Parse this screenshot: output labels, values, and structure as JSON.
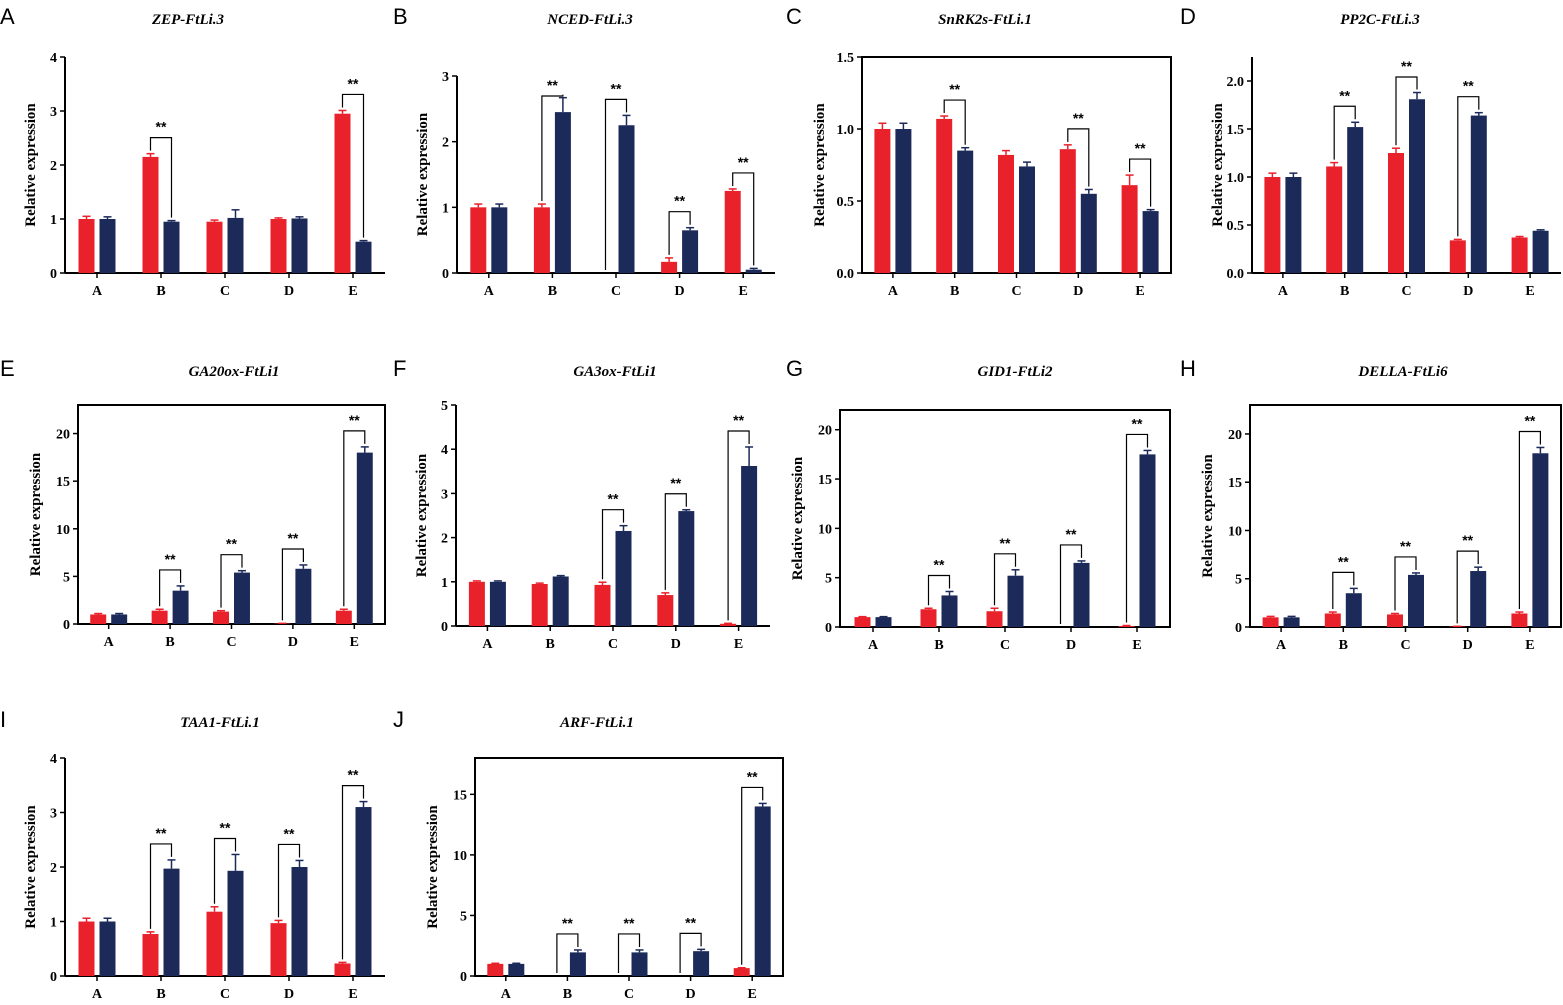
{
  "colors": {
    "control": "#e8212b",
    "treatment": "#1c2a5a"
  },
  "chart_data": [
    {
      "panel": "A",
      "type": "bar",
      "title": "ZEP-FtLi.3",
      "ylabel": "Relative expression",
      "categories": [
        "A",
        "B",
        "C",
        "D",
        "E"
      ],
      "ylim": [
        0,
        4
      ],
      "yticks": [
        "0",
        "1",
        "2",
        "3",
        "4"
      ],
      "series": [
        {
          "name": "red",
          "values": [
            1.0,
            2.15,
            0.95,
            1.0,
            2.95
          ],
          "errors": [
            0.05,
            0.06,
            0.03,
            0.02,
            0.06
          ]
        },
        {
          "name": "blue",
          "values": [
            1.0,
            0.95,
            1.02,
            1.01,
            0.58
          ],
          "errors": [
            0.04,
            0.02,
            0.15,
            0.03,
            0.02
          ]
        }
      ],
      "significance": [
        {
          "category": "B",
          "label": "**"
        },
        {
          "category": "E",
          "label": "**"
        }
      ]
    },
    {
      "panel": "B",
      "type": "bar",
      "title": "NCED-FtLi.3",
      "ylabel": "Relative expression",
      "categories": [
        "A",
        "B",
        "C",
        "D",
        "E"
      ],
      "ylim": [
        0,
        3
      ],
      "yticks": [
        "0",
        "1",
        "2",
        "3"
      ],
      "series": [
        {
          "name": "red",
          "values": [
            1.0,
            1.0,
            0.0,
            0.17,
            1.25
          ],
          "errors": [
            0.05,
            0.05,
            0,
            0.06,
            0.03
          ]
        },
        {
          "name": "blue",
          "values": [
            1.0,
            2.45,
            2.25,
            0.65,
            0.05
          ],
          "errors": [
            0.05,
            0.22,
            0.15,
            0.04,
            0.02
          ]
        }
      ],
      "significance": [
        {
          "category": "B",
          "label": "**"
        },
        {
          "category": "C",
          "label": "**"
        },
        {
          "category": "D",
          "label": "**"
        },
        {
          "category": "E",
          "label": "**"
        }
      ]
    },
    {
      "panel": "C",
      "type": "bar",
      "title": "SnRK2s-FtLi.1",
      "ylabel": "Relative expression",
      "categories": [
        "A",
        "B",
        "C",
        "D",
        "E"
      ],
      "ylim": [
        0,
        1.5
      ],
      "yticks": [
        "0.0",
        "0.5",
        "1.0",
        "1.5"
      ],
      "series": [
        {
          "name": "red",
          "values": [
            1.0,
            1.07,
            0.82,
            0.86,
            0.61
          ],
          "errors": [
            0.04,
            0.02,
            0.03,
            0.03,
            0.07
          ]
        },
        {
          "name": "blue",
          "values": [
            1.0,
            0.85,
            0.74,
            0.55,
            0.43
          ],
          "errors": [
            0.04,
            0.02,
            0.03,
            0.03,
            0.01
          ]
        }
      ],
      "significance": [
        {
          "category": "B",
          "label": "**"
        },
        {
          "category": "D",
          "label": "**"
        },
        {
          "category": "E",
          "label": "**"
        }
      ]
    },
    {
      "panel": "D",
      "type": "bar",
      "title": "PP2C-FtLi.3",
      "ylabel": "Relative expression",
      "categories": [
        "A",
        "B",
        "C",
        "D",
        "E"
      ],
      "ylim": [
        0,
        2.25
      ],
      "yticks": [
        "0.0",
        "0.5",
        "1.0",
        "1.5",
        "2.0"
      ],
      "series": [
        {
          "name": "red",
          "values": [
            1.0,
            1.11,
            1.25,
            0.34,
            0.37
          ],
          "errors": [
            0.04,
            0.04,
            0.05,
            0.01,
            0.01
          ]
        },
        {
          "name": "blue",
          "values": [
            1.0,
            1.52,
            1.81,
            1.64,
            0.44
          ],
          "errors": [
            0.04,
            0.05,
            0.07,
            0.03,
            0.01
          ]
        }
      ],
      "significance": [
        {
          "category": "B",
          "label": "**"
        },
        {
          "category": "C",
          "label": "**"
        },
        {
          "category": "D",
          "label": "**"
        }
      ]
    },
    {
      "panel": "E",
      "type": "bar",
      "title": "GA20ox-FtLi1",
      "ylabel": "Relative expression",
      "categories": [
        "A",
        "B",
        "C",
        "D",
        "E"
      ],
      "ylim": [
        0,
        23
      ],
      "yticks": [
        "0",
        "5",
        "10",
        "15",
        "20"
      ],
      "series": [
        {
          "name": "red",
          "values": [
            1.0,
            1.4,
            1.3,
            0.05,
            1.4
          ],
          "errors": [
            0.1,
            0.15,
            0.1,
            0.02,
            0.15
          ]
        },
        {
          "name": "blue",
          "values": [
            1.0,
            3.5,
            5.4,
            5.8,
            18.0
          ],
          "errors": [
            0.1,
            0.5,
            0.2,
            0.4,
            0.6
          ]
        }
      ],
      "significance": [
        {
          "category": "B",
          "label": "**"
        },
        {
          "category": "C",
          "label": "**"
        },
        {
          "category": "D",
          "label": "**"
        },
        {
          "category": "E",
          "label": "**"
        }
      ]
    },
    {
      "panel": "F",
      "type": "bar",
      "title": "GA3ox-FtLi1",
      "ylabel": "Relative expression",
      "categories": [
        "A",
        "B",
        "C",
        "D",
        "E"
      ],
      "ylim": [
        0,
        5
      ],
      "yticks": [
        "0",
        "1",
        "2",
        "3",
        "4",
        "5"
      ],
      "series": [
        {
          "name": "red",
          "values": [
            1.0,
            0.95,
            0.93,
            0.7,
            0.05
          ],
          "errors": [
            0.02,
            0.02,
            0.06,
            0.05,
            0.01
          ]
        },
        {
          "name": "blue",
          "values": [
            1.0,
            1.12,
            2.15,
            2.6,
            3.62
          ],
          "errors": [
            0.02,
            0.02,
            0.12,
            0.03,
            0.43
          ]
        }
      ],
      "significance": [
        {
          "category": "C",
          "label": "**"
        },
        {
          "category": "D",
          "label": "**"
        },
        {
          "category": "E",
          "label": "**"
        }
      ]
    },
    {
      "panel": "G",
      "type": "bar",
      "title": "GID1-FtLi2",
      "ylabel": "Relative expression",
      "categories": [
        "A",
        "B",
        "C",
        "D",
        "E"
      ],
      "ylim": [
        0,
        22
      ],
      "yticks": [
        "0",
        "5",
        "10",
        "15",
        "20"
      ],
      "series": [
        {
          "name": "red",
          "values": [
            1.0,
            1.8,
            1.6,
            0.0,
            0.1
          ],
          "errors": [
            0.05,
            0.1,
            0.3,
            0,
            0.05
          ]
        },
        {
          "name": "blue",
          "values": [
            1.0,
            3.2,
            5.2,
            6.5,
            17.5
          ],
          "errors": [
            0.05,
            0.4,
            0.6,
            0.2,
            0.4
          ]
        }
      ],
      "significance": [
        {
          "category": "B",
          "label": "**"
        },
        {
          "category": "C",
          "label": "**"
        },
        {
          "category": "D",
          "label": "**"
        },
        {
          "category": "E",
          "label": "**"
        }
      ]
    },
    {
      "panel": "H",
      "type": "bar",
      "title": "DELLA-FtLi6",
      "ylabel": "Relative expression",
      "categories": [
        "A",
        "B",
        "C",
        "D",
        "E"
      ],
      "ylim": [
        0,
        23
      ],
      "yticks": [
        "0",
        "5",
        "10",
        "15",
        "20"
      ],
      "series": [
        {
          "name": "red",
          "values": [
            1.0,
            1.4,
            1.3,
            0.05,
            1.4
          ],
          "errors": [
            0.1,
            0.15,
            0.1,
            0.02,
            0.15
          ]
        },
        {
          "name": "blue",
          "values": [
            1.0,
            3.5,
            5.4,
            5.8,
            18.0
          ],
          "errors": [
            0.1,
            0.5,
            0.2,
            0.4,
            0.6
          ]
        }
      ],
      "significance": [
        {
          "category": "B",
          "label": "**"
        },
        {
          "category": "C",
          "label": "**"
        },
        {
          "category": "D",
          "label": "**"
        },
        {
          "category": "E",
          "label": "**"
        }
      ]
    },
    {
      "panel": "I",
      "type": "bar",
      "title": "TAA1-FtLi.1",
      "ylabel": "Relative expression",
      "categories": [
        "A",
        "B",
        "C",
        "D",
        "E"
      ],
      "ylim": [
        0,
        4
      ],
      "yticks": [
        "0",
        "1",
        "2",
        "3",
        "4"
      ],
      "series": [
        {
          "name": "red",
          "values": [
            1.0,
            0.77,
            1.18,
            0.97,
            0.23
          ],
          "errors": [
            0.06,
            0.04,
            0.09,
            0.05,
            0.02
          ]
        },
        {
          "name": "blue",
          "values": [
            1.0,
            1.97,
            1.93,
            2.0,
            3.1
          ],
          "errors": [
            0.06,
            0.16,
            0.3,
            0.12,
            0.1
          ]
        }
      ],
      "significance": [
        {
          "category": "B",
          "label": "**"
        },
        {
          "category": "C",
          "label": "**"
        },
        {
          "category": "D",
          "label": "**"
        },
        {
          "category": "E",
          "label": "**"
        }
      ]
    },
    {
      "panel": "J",
      "type": "bar",
      "title": "ARF-FtLi.1",
      "ylabel": "Relative expression",
      "categories": [
        "A",
        "B",
        "C",
        "D",
        "E"
      ],
      "ylim": [
        0,
        18
      ],
      "yticks": [
        "0",
        "5",
        "10",
        "15"
      ],
      "series": [
        {
          "name": "red",
          "values": [
            1.0,
            0.0,
            0.0,
            0.0,
            0.65
          ],
          "errors": [
            0.05,
            0,
            0,
            0,
            0.03
          ]
        },
        {
          "name": "blue",
          "values": [
            1.0,
            1.95,
            1.95,
            2.05,
            14.0
          ],
          "errors": [
            0.05,
            0.2,
            0.2,
            0.15,
            0.25
          ]
        }
      ],
      "significance": [
        {
          "category": "B",
          "label": "**"
        },
        {
          "category": "C",
          "label": "**"
        },
        {
          "category": "D",
          "label": "**"
        },
        {
          "category": "E",
          "label": "**"
        }
      ]
    }
  ]
}
